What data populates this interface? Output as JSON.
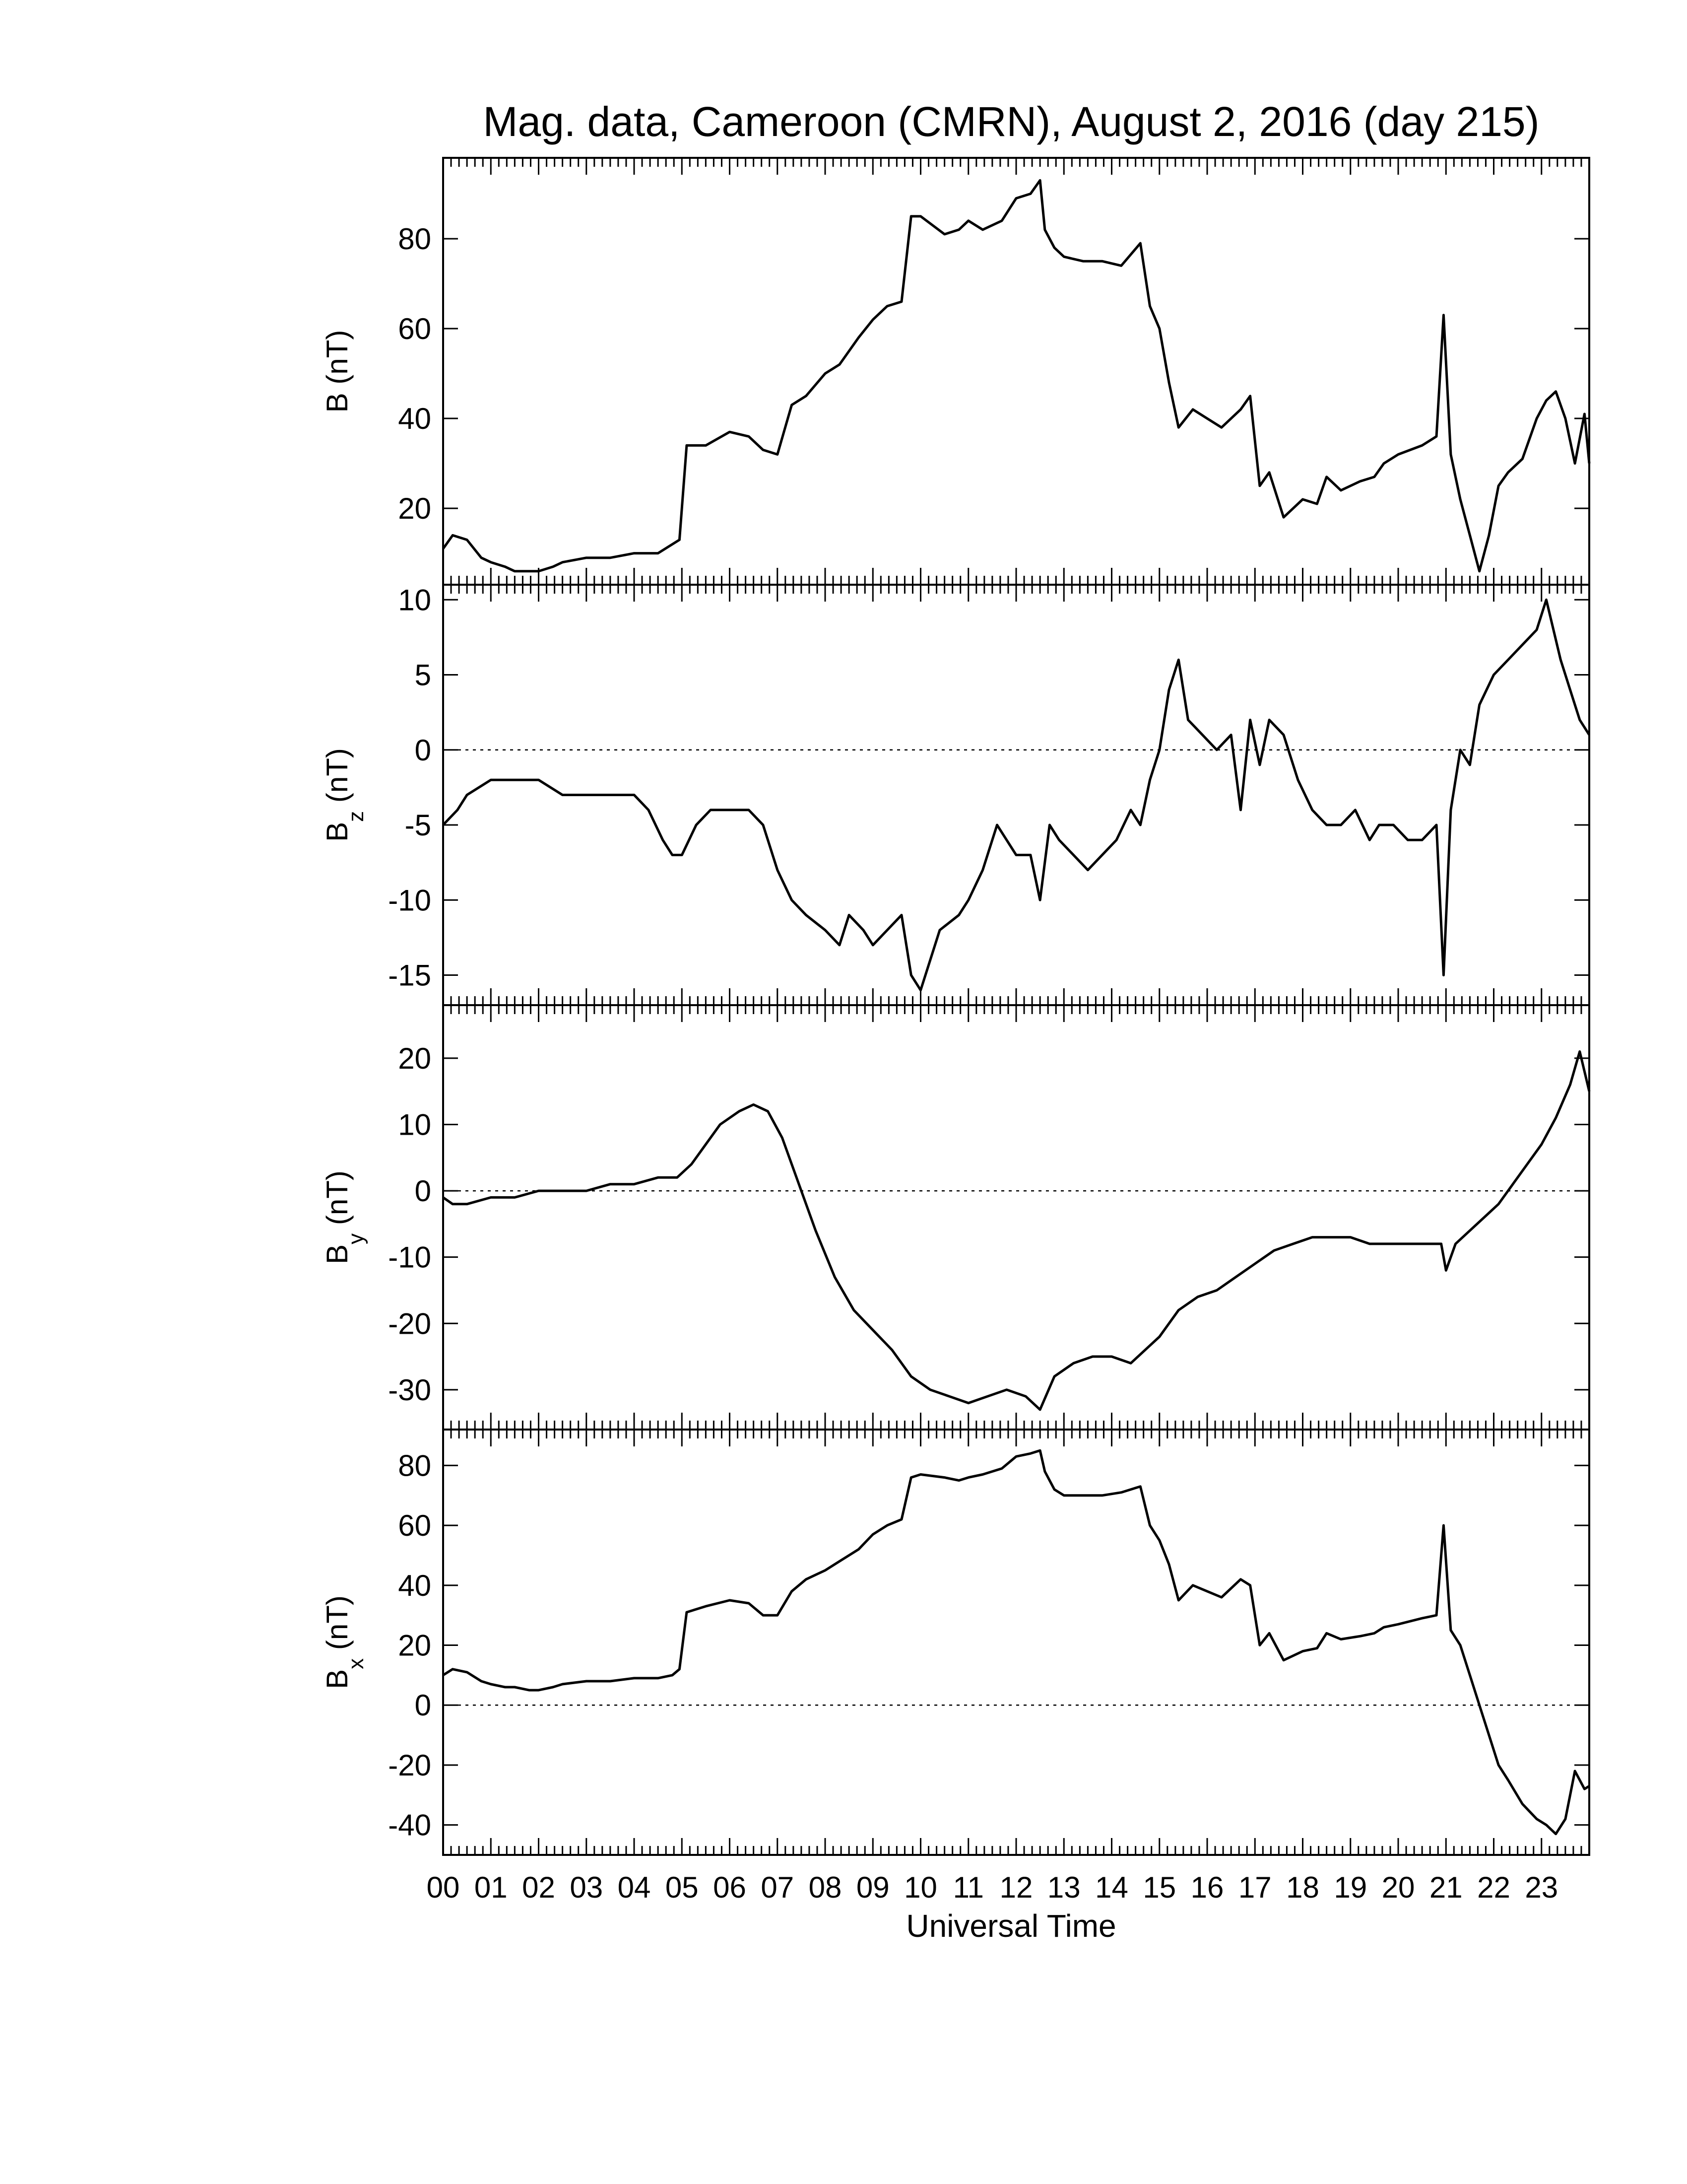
{
  "title": "Mag. data, Cameroon (CMRN), August 2, 2016 (day 215)",
  "xlabel": "Universal Time",
  "colors": {
    "line": "#000000",
    "frame": "#000000",
    "zero_line": "#000000",
    "background": "#ffffff"
  },
  "chart_data": [
    {
      "type": "line",
      "ylabel": "B (nT)",
      "ylabel_main": "B",
      "ylabel_sub": "",
      "ylabel_unit": " (nT)",
      "ylim": [
        3,
        98
      ],
      "yticks": [
        20,
        40,
        60,
        80
      ],
      "zero_line": false,
      "x": [
        0,
        0.2,
        0.5,
        0.8,
        1.0,
        1.3,
        1.5,
        1.8,
        2.0,
        2.3,
        2.5,
        3.0,
        3.5,
        4.0,
        4.5,
        4.8,
        4.95,
        5.1,
        5.5,
        6.0,
        6.4,
        6.7,
        7.0,
        7.3,
        7.6,
        8.0,
        8.3,
        8.7,
        9.0,
        9.3,
        9.6,
        9.8,
        10.0,
        10.5,
        10.8,
        11.0,
        11.3,
        11.7,
        12.0,
        12.3,
        12.5,
        12.6,
        12.8,
        13.0,
        13.4,
        13.8,
        14.2,
        14.6,
        14.8,
        15.0,
        15.2,
        15.4,
        15.7,
        16.0,
        16.3,
        16.7,
        16.9,
        17.1,
        17.3,
        17.6,
        18.0,
        18.3,
        18.5,
        18.8,
        19.2,
        19.5,
        19.7,
        20.0,
        20.5,
        20.8,
        20.95,
        21.1,
        21.3,
        21.5,
        21.7,
        21.9,
        22.1,
        22.3,
        22.6,
        22.9,
        23.1,
        23.3,
        23.5,
        23.7,
        23.9,
        24.0
      ],
      "y": [
        11,
        14,
        13,
        9,
        8,
        7,
        6,
        6,
        6,
        7,
        8,
        9,
        9,
        10,
        10,
        12,
        13,
        34,
        34,
        37,
        36,
        33,
        32,
        43,
        45,
        50,
        52,
        58,
        62,
        65,
        66,
        85,
        85,
        81,
        82,
        84,
        82,
        84,
        89,
        90,
        93,
        82,
        78,
        76,
        75,
        75,
        74,
        79,
        65,
        60,
        48,
        38,
        42,
        40,
        38,
        42,
        45,
        25,
        28,
        18,
        22,
        21,
        27,
        24,
        26,
        27,
        30,
        32,
        34,
        36,
        63,
        32,
        22,
        14,
        6,
        14,
        25,
        28,
        31,
        40,
        44,
        46,
        40,
        30,
        41,
        30
      ]
    },
    {
      "type": "line",
      "ylabel": "Bz (nT)",
      "ylabel_main": "B",
      "ylabel_sub": "z",
      "ylabel_unit": " (nT)",
      "ylim": [
        -17,
        11
      ],
      "yticks": [
        -15,
        -10,
        -5,
        0,
        5,
        10
      ],
      "zero_line": true,
      "x": [
        0,
        0.3,
        0.5,
        1.0,
        1.5,
        2.0,
        2.5,
        3.0,
        3.5,
        4.0,
        4.3,
        4.6,
        4.8,
        5.0,
        5.3,
        5.6,
        6.0,
        6.4,
        6.7,
        7.0,
        7.3,
        7.6,
        8.0,
        8.3,
        8.5,
        8.8,
        9.0,
        9.3,
        9.6,
        9.8,
        10.0,
        10.4,
        10.8,
        11.0,
        11.3,
        11.6,
        11.8,
        12.0,
        12.3,
        12.5,
        12.7,
        12.9,
        13.2,
        13.5,
        13.8,
        14.1,
        14.4,
        14.6,
        14.8,
        15.0,
        15.2,
        15.4,
        15.6,
        15.9,
        16.2,
        16.5,
        16.7,
        16.9,
        17.1,
        17.3,
        17.6,
        17.9,
        18.2,
        18.5,
        18.8,
        19.1,
        19.4,
        19.6,
        19.9,
        20.2,
        20.5,
        20.8,
        20.95,
        21.1,
        21.3,
        21.5,
        21.7,
        22.0,
        22.3,
        22.6,
        22.9,
        23.1,
        23.4,
        23.6,
        23.8,
        24.0
      ],
      "y": [
        -5,
        -4,
        -3,
        -2,
        -2,
        -2,
        -3,
        -3,
        -3,
        -3,
        -4,
        -6,
        -7,
        -7,
        -5,
        -4,
        -4,
        -4,
        -5,
        -8,
        -10,
        -11,
        -12,
        -13,
        -11,
        -12,
        -13,
        -12,
        -11,
        -15,
        -16,
        -12,
        -11,
        -10,
        -8,
        -5,
        -6,
        -7,
        -7,
        -10,
        -5,
        -6,
        -7,
        -8,
        -7,
        -6,
        -4,
        -5,
        -2,
        0,
        4,
        6,
        2,
        1,
        0,
        1,
        -4,
        2,
        -1,
        2,
        1,
        -2,
        -4,
        -5,
        -5,
        -4,
        -6,
        -5,
        -5,
        -6,
        -6,
        -5,
        -15,
        -4,
        0,
        -1,
        3,
        5,
        6,
        7,
        8,
        10,
        6,
        4,
        2,
        1
      ]
    },
    {
      "type": "line",
      "ylabel": "By (nT)",
      "ylabel_main": "B",
      "ylabel_sub": "y",
      "ylabel_unit": " (nT)",
      "ylim": [
        -36,
        28
      ],
      "yticks": [
        -30,
        -20,
        -10,
        0,
        10,
        20
      ],
      "zero_line": true,
      "x": [
        0,
        0.2,
        0.5,
        1.0,
        1.5,
        2.0,
        2.5,
        3.0,
        3.5,
        4.0,
        4.5,
        4.9,
        5.2,
        5.5,
        5.8,
        6.2,
        6.5,
        6.8,
        7.1,
        7.4,
        7.8,
        8.2,
        8.6,
        9.0,
        9.4,
        9.8,
        10.2,
        10.6,
        11.0,
        11.4,
        11.8,
        12.2,
        12.5,
        12.8,
        13.2,
        13.6,
        14.0,
        14.4,
        14.7,
        15.0,
        15.4,
        15.8,
        16.2,
        16.6,
        17.0,
        17.4,
        17.8,
        18.2,
        18.6,
        19.0,
        19.4,
        19.8,
        20.2,
        20.6,
        20.9,
        21.0,
        21.2,
        21.5,
        21.8,
        22.1,
        22.4,
        22.7,
        23.0,
        23.3,
        23.6,
        23.8,
        24.0
      ],
      "y": [
        -1,
        -2,
        -2,
        -1,
        -1,
        0,
        0,
        0,
        1,
        1,
        2,
        2,
        4,
        7,
        10,
        12,
        13,
        12,
        8,
        2,
        -6,
        -13,
        -18,
        -21,
        -24,
        -28,
        -30,
        -31,
        -32,
        -31,
        -30,
        -31,
        -33,
        -28,
        -26,
        -25,
        -25,
        -26,
        -24,
        -22,
        -18,
        -16,
        -15,
        -13,
        -11,
        -9,
        -8,
        -7,
        -7,
        -7,
        -8,
        -8,
        -8,
        -8,
        -8,
        -12,
        -8,
        -6,
        -4,
        -2,
        1,
        4,
        7,
        11,
        16,
        21,
        15
      ]
    },
    {
      "type": "line",
      "ylabel": "Bx (nT)",
      "ylabel_main": "B",
      "ylabel_sub": "x",
      "ylabel_unit": " (nT)",
      "ylim": [
        -50,
        92
      ],
      "yticks": [
        -40,
        -20,
        0,
        20,
        40,
        60,
        80
      ],
      "zero_line": true,
      "x": [
        0,
        0.2,
        0.5,
        0.8,
        1.0,
        1.3,
        1.5,
        1.8,
        2.0,
        2.3,
        2.5,
        3.0,
        3.5,
        4.0,
        4.5,
        4.8,
        4.95,
        5.1,
        5.5,
        6.0,
        6.4,
        6.7,
        7.0,
        7.3,
        7.6,
        8.0,
        8.3,
        8.7,
        9.0,
        9.3,
        9.6,
        9.8,
        10.0,
        10.5,
        10.8,
        11.0,
        11.3,
        11.7,
        12.0,
        12.3,
        12.5,
        12.6,
        12.8,
        13.0,
        13.4,
        13.8,
        14.2,
        14.6,
        14.8,
        15.0,
        15.2,
        15.4,
        15.7,
        16.0,
        16.3,
        16.7,
        16.9,
        17.1,
        17.3,
        17.6,
        18.0,
        18.3,
        18.5,
        18.8,
        19.2,
        19.5,
        19.7,
        20.0,
        20.5,
        20.8,
        20.95,
        21.1,
        21.3,
        21.5,
        21.7,
        21.9,
        22.1,
        22.3,
        22.6,
        22.9,
        23.1,
        23.3,
        23.5,
        23.7,
        23.9,
        24.0
      ],
      "y": [
        10,
        12,
        11,
        8,
        7,
        6,
        6,
        5,
        5,
        6,
        7,
        8,
        8,
        9,
        9,
        10,
        12,
        31,
        33,
        35,
        34,
        30,
        30,
        38,
        42,
        45,
        48,
        52,
        57,
        60,
        62,
        76,
        77,
        76,
        75,
        76,
        77,
        79,
        83,
        84,
        85,
        78,
        72,
        70,
        70,
        70,
        71,
        73,
        60,
        55,
        47,
        35,
        40,
        38,
        36,
        42,
        40,
        20,
        24,
        15,
        18,
        19,
        24,
        22,
        23,
        24,
        26,
        27,
        29,
        30,
        60,
        25,
        20,
        10,
        0,
        -10,
        -20,
        -25,
        -33,
        -38,
        -40,
        -43,
        -38,
        -22,
        -28,
        -27
      ]
    }
  ],
  "x_axis": {
    "range": [
      0,
      24
    ],
    "tick_labels": [
      "00",
      "01",
      "02",
      "03",
      "04",
      "05",
      "06",
      "07",
      "08",
      "09",
      "10",
      "11",
      "12",
      "13",
      "14",
      "15",
      "16",
      "17",
      "18",
      "19",
      "20",
      "21",
      "22",
      "23"
    ]
  }
}
